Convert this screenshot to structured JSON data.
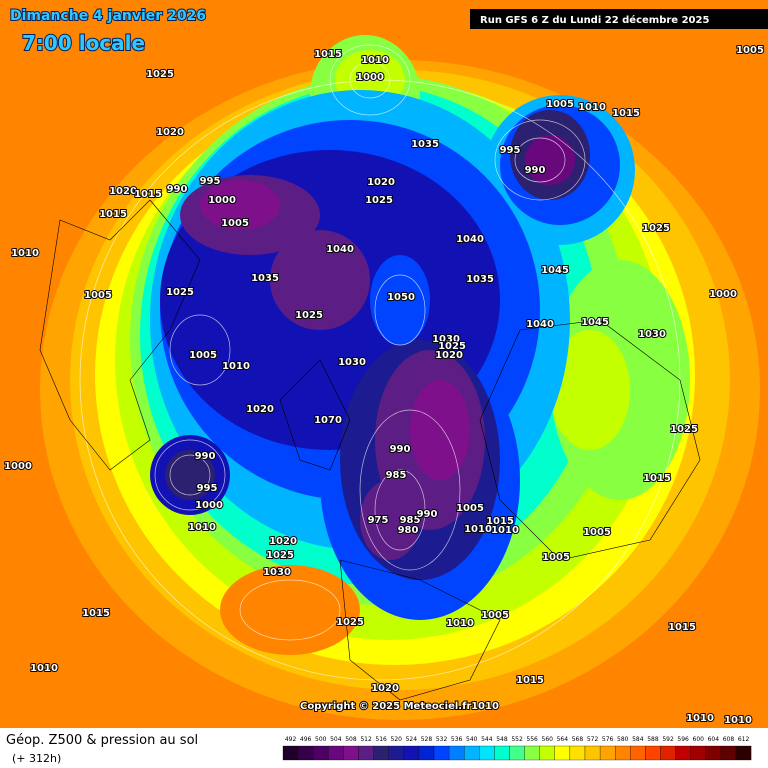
{
  "header": {
    "date": "Dimanche 4 janvier 2026",
    "time": "7:00 locale",
    "run": "Run GFS 6 Z du Lundi 22 décembre 2025"
  },
  "footer": {
    "title": "Géop. Z500 & pression au sol",
    "lead": "(+ 312h)",
    "copyright": "Copyright © 2025 Meteociel.fr"
  },
  "colorbar": {
    "labels": [
      492,
      496,
      500,
      504,
      508,
      512,
      516,
      520,
      524,
      528,
      532,
      536,
      540,
      544,
      548,
      552,
      556,
      560,
      564,
      568,
      572,
      576,
      580,
      584,
      588,
      592,
      596,
      600,
      604,
      608,
      612
    ],
    "colors": [
      "#20002a",
      "#34004a",
      "#4c0064",
      "#68087c",
      "#7e108c",
      "#5c1e84",
      "#2c2070",
      "#1c1c90",
      "#1212b4",
      "#0024d4",
      "#0044ff",
      "#0080ff",
      "#00b4ff",
      "#00e4ff",
      "#00ffcc",
      "#44ff8c",
      "#88ff40",
      "#c4ff00",
      "#ffff00",
      "#ffe000",
      "#ffc400",
      "#ffa400",
      "#ff8400",
      "#ff6400",
      "#ff4400",
      "#e02200",
      "#c00000",
      "#a00000",
      "#800000",
      "#600000",
      "#2c0000"
    ]
  },
  "pressure_labels": [
    1005,
    1015,
    1010,
    1000,
    1025,
    1020,
    1035,
    1005,
    1010,
    1015,
    995,
    1000,
    1005,
    1020,
    1015,
    990,
    995,
    990,
    1020,
    1025,
    1015,
    1040,
    1040,
    1035,
    1045,
    1025,
    1010,
    1005,
    1025,
    1035,
    1050,
    1025,
    1045,
    1040,
    1000,
    1030,
    1030,
    1020,
    1005,
    1010,
    1030,
    1025,
    1070,
    1020,
    990,
    985,
    1015,
    1025,
    1010,
    990,
    995,
    1000,
    1010,
    975,
    985,
    980,
    990,
    1005,
    1010,
    1015,
    1005,
    1005,
    1020,
    1025,
    1030,
    1015,
    1025,
    1015,
    1010,
    1020,
    1010,
    1015,
    1010,
    1010,
    1010,
    1005,
    1000
  ]
}
